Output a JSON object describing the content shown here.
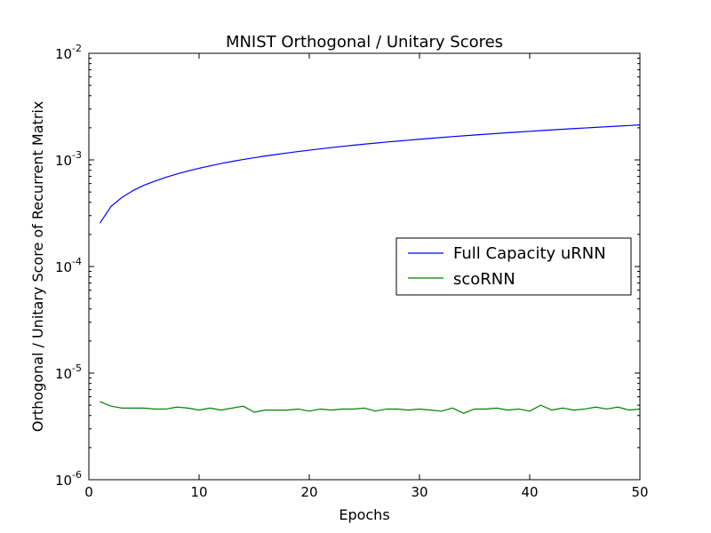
{
  "chart_data": {
    "type": "line",
    "title": "MNIST Orthogonal / Unitary Scores",
    "xlabel": "Epochs",
    "ylabel": "Orthogonal / Unitary Score of Recurrent Matrix",
    "xlim": [
      0,
      50
    ],
    "ylim": [
      1e-06,
      0.01
    ],
    "yscale": "log",
    "grid": false,
    "legend_position": "center-right",
    "x_ticks": [
      {
        "value": 0,
        "label": "0"
      },
      {
        "value": 10,
        "label": "10"
      },
      {
        "value": 20,
        "label": "20"
      },
      {
        "value": 30,
        "label": "30"
      },
      {
        "value": 40,
        "label": "40"
      },
      {
        "value": 50,
        "label": "50"
      }
    ],
    "y_ticks": [
      {
        "value": 1e-06,
        "base": "10",
        "exp": "-6"
      },
      {
        "value": 1e-05,
        "base": "10",
        "exp": "-5"
      },
      {
        "value": 0.0001,
        "base": "10",
        "exp": "-4"
      },
      {
        "value": 0.001,
        "base": "10",
        "exp": "-3"
      },
      {
        "value": 0.01,
        "base": "10",
        "exp": "-2"
      }
    ],
    "series": [
      {
        "name": "Full Capacity uRNN",
        "color": "#0000ff",
        "x": [
          1,
          2,
          3,
          4,
          5,
          6,
          7,
          8,
          9,
          10,
          11,
          12,
          13,
          14,
          15,
          16,
          17,
          18,
          19,
          20,
          21,
          22,
          23,
          24,
          25,
          26,
          27,
          28,
          29,
          30,
          31,
          32,
          33,
          34,
          35,
          36,
          37,
          38,
          39,
          40,
          41,
          42,
          43,
          44,
          45,
          46,
          47,
          48,
          49,
          50
        ],
        "y": [
          0.000255,
          0.000365,
          0.000445,
          0.000515,
          0.000578,
          0.000633,
          0.000687,
          0.000738,
          0.000788,
          0.000834,
          0.000879,
          0.000925,
          0.000967,
          0.001008,
          0.001048,
          0.001088,
          0.001125,
          0.001162,
          0.001198,
          0.001234,
          0.001269,
          0.001304,
          0.001338,
          0.001372,
          0.001405,
          0.001437,
          0.001469,
          0.0015,
          0.001531,
          0.001562,
          0.001593,
          0.001623,
          0.001653,
          0.001683,
          0.001712,
          0.001741,
          0.00177,
          0.001799,
          0.001827,
          0.001855,
          0.001883,
          0.001911,
          0.001939,
          0.001966,
          0.001993,
          0.00202,
          0.002047,
          0.002074,
          0.0021,
          0.00213
        ]
      },
      {
        "name": "scoRNN",
        "color": "#008000",
        "x": [
          1,
          2,
          3,
          4,
          5,
          6,
          7,
          8,
          9,
          10,
          11,
          12,
          13,
          14,
          15,
          16,
          17,
          18,
          19,
          20,
          21,
          22,
          23,
          24,
          25,
          26,
          27,
          28,
          29,
          30,
          31,
          32,
          33,
          34,
          35,
          36,
          37,
          38,
          39,
          40,
          41,
          42,
          43,
          44,
          45,
          46,
          47,
          48,
          49,
          50
        ],
        "y": [
          5.4e-06,
          4.9e-06,
          4.7e-06,
          4.7e-06,
          4.7e-06,
          4.6e-06,
          4.6e-06,
          4.8e-06,
          4.7e-06,
          4.5e-06,
          4.7e-06,
          4.5e-06,
          4.7e-06,
          4.9e-06,
          4.3e-06,
          4.5e-06,
          4.5e-06,
          4.5e-06,
          4.6e-06,
          4.4e-06,
          4.6e-06,
          4.5e-06,
          4.6e-06,
          4.6e-06,
          4.7e-06,
          4.4e-06,
          4.6e-06,
          4.6e-06,
          4.5e-06,
          4.6e-06,
          4.5e-06,
          4.4e-06,
          4.7e-06,
          4.2e-06,
          4.6e-06,
          4.6e-06,
          4.7e-06,
          4.5e-06,
          4.6e-06,
          4.4e-06,
          5e-06,
          4.5e-06,
          4.7e-06,
          4.5e-06,
          4.6e-06,
          4.8e-06,
          4.6e-06,
          4.8e-06,
          4.5e-06,
          4.6e-06
        ]
      }
    ]
  }
}
